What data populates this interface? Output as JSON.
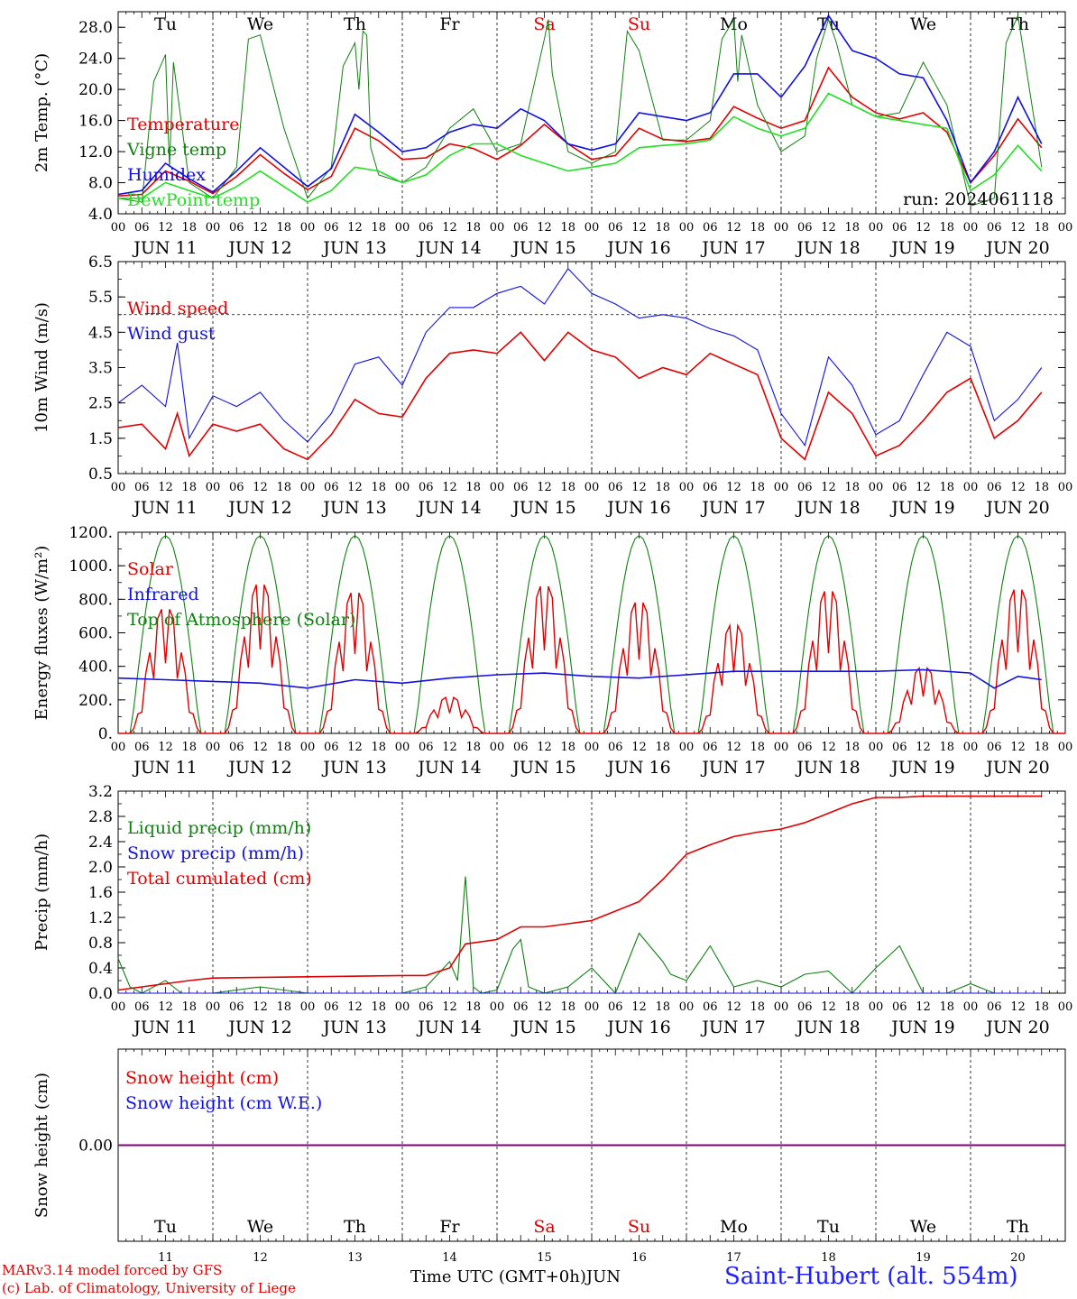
{
  "days": [
    "JUN 11",
    "JUN 12",
    "JUN 13",
    "JUN 14",
    "JUN 15",
    "JUN 16",
    "JUN 17",
    "JUN 18",
    "JUN 19",
    "JUN 20"
  ],
  "weekdays": [
    "Tu",
    "We",
    "Th",
    "Fr",
    "Sa",
    "Su",
    "Mo",
    "Tu",
    "We",
    "Th"
  ],
  "weekday_colors": [
    "#000000",
    "#000000",
    "#000000",
    "#000000",
    "#e00000",
    "#e00000",
    "#000000",
    "#000000",
    "#000000",
    "#000000"
  ],
  "day_numbers": [
    "11",
    "12",
    "13",
    "14",
    "15",
    "16",
    "17",
    "18",
    "19",
    "20"
  ],
  "hour_labels": [
    "00",
    "06",
    "12",
    "18"
  ],
  "footer": {
    "credit_line1": "MARv3.14 model forced by GFS",
    "credit_line2": "(c) Lab. of Climatology, University of Liege",
    "xaxis_title": "Time UTC (GMT+0h)",
    "xaxis_unit": "JUN",
    "station": "Saint-Hubert (alt. 554m)"
  },
  "colors": {
    "red": "#e00000",
    "green": "#108010",
    "blue": "#1010e0",
    "lightgreen": "#20e020",
    "purple": "#800080"
  },
  "chart_data": [
    {
      "type": "line",
      "ylabel": "2m Temp. (°C)",
      "ylim": [
        4,
        30
      ],
      "yticks": [
        "4.0",
        "8.0",
        "12.0",
        "16.0",
        "20.0",
        "24.0",
        "28.0"
      ],
      "annotation": "run: 2024061118",
      "x_unit": "hours since JUN 11 00 UTC",
      "series": [
        {
          "name": "Temperature",
          "color": "red",
          "x": [
            0,
            6,
            12,
            18,
            24,
            30,
            36,
            42,
            48,
            54,
            60,
            66,
            72,
            78,
            84,
            90,
            96,
            102,
            108,
            114,
            120,
            126,
            132,
            138,
            144,
            150,
            156,
            162,
            168,
            174,
            180,
            186,
            192,
            198,
            204,
            210,
            216,
            222,
            228,
            234
          ],
          "values": [
            6.3,
            6.5,
            9.5,
            8.2,
            6.6,
            8.8,
            11.6,
            9.2,
            7.1,
            8.8,
            15.0,
            13.4,
            11.0,
            11.2,
            13.0,
            12.4,
            11.0,
            12.8,
            15.5,
            13.0,
            11.0,
            11.5,
            15.0,
            13.6,
            13.3,
            13.7,
            17.8,
            16.3,
            15.0,
            16.0,
            22.8,
            19.0,
            17.0,
            16.2,
            17.0,
            14.5,
            8.0,
            11.5,
            16.2,
            12.5
          ]
        },
        {
          "name": "Vigne temp",
          "color": "green",
          "x": [
            0,
            6,
            9,
            12,
            13,
            14,
            18,
            24,
            30,
            33,
            36,
            42,
            48,
            54,
            57,
            60,
            61,
            62,
            63,
            64,
            66,
            72,
            78,
            84,
            90,
            96,
            102,
            108,
            109,
            110,
            114,
            120,
            126,
            129,
            132,
            138,
            144,
            150,
            153,
            156,
            157,
            158,
            162,
            168,
            174,
            177,
            180,
            182,
            186,
            192,
            198,
            204,
            210,
            216,
            222,
            225,
            228,
            234
          ],
          "values": [
            6.0,
            5.5,
            21.0,
            24.5,
            10.0,
            23.5,
            8.0,
            6.0,
            10.0,
            26.5,
            27.0,
            15.0,
            6.0,
            10.0,
            23.0,
            26.0,
            20.0,
            27.5,
            27.0,
            12.5,
            9.0,
            8.0,
            10.0,
            15.0,
            17.5,
            12.0,
            13.0,
            26.5,
            29.0,
            22.0,
            12.0,
            10.5,
            12.0,
            27.5,
            25.0,
            13.5,
            13.5,
            16.0,
            26.5,
            29.0,
            21.0,
            27.0,
            18.0,
            12.0,
            14.0,
            24.0,
            29.0,
            26.0,
            18.0,
            16.5,
            17.0,
            23.5,
            18.0,
            5.0,
            6.0,
            26.0,
            29.5,
            10.0
          ]
        },
        {
          "name": "Humidex",
          "color": "blue",
          "x": [
            0,
            6,
            12,
            18,
            24,
            30,
            36,
            42,
            48,
            54,
            60,
            66,
            72,
            78,
            84,
            90,
            96,
            102,
            108,
            114,
            120,
            126,
            132,
            138,
            144,
            150,
            156,
            162,
            168,
            174,
            180,
            186,
            192,
            198,
            204,
            210,
            216,
            222,
            228,
            234
          ],
          "values": [
            6.5,
            7.0,
            10.5,
            8.5,
            6.8,
            9.5,
            12.5,
            10.0,
            7.5,
            9.8,
            16.8,
            14.5,
            12.0,
            12.5,
            14.5,
            15.5,
            15.0,
            17.5,
            16.0,
            13.0,
            12.2,
            13.0,
            17.0,
            16.5,
            16.0,
            17.0,
            22.0,
            22.0,
            19.0,
            23.0,
            29.5,
            25.0,
            24.0,
            22.0,
            21.5,
            16.0,
            8.0,
            12.0,
            19.0,
            13.0
          ]
        },
        {
          "name": "DewPoint temp",
          "color": "lightgreen",
          "x": [
            0,
            6,
            12,
            18,
            24,
            30,
            36,
            42,
            48,
            54,
            60,
            66,
            72,
            78,
            84,
            90,
            96,
            102,
            108,
            114,
            120,
            126,
            132,
            138,
            144,
            150,
            156,
            162,
            168,
            174,
            180,
            186,
            192,
            198,
            204,
            210,
            216,
            222,
            228,
            234
          ],
          "values": [
            6.0,
            6.0,
            8.0,
            7.0,
            6.0,
            7.5,
            9.5,
            7.5,
            5.5,
            7.0,
            10.0,
            9.5,
            8.0,
            9.0,
            11.5,
            13.0,
            13.0,
            11.5,
            10.5,
            9.5,
            10.0,
            10.5,
            12.5,
            12.8,
            13.0,
            13.5,
            16.5,
            15.0,
            14.0,
            15.0,
            19.5,
            18.0,
            16.5,
            16.0,
            15.5,
            15.0,
            7.0,
            9.0,
            12.8,
            9.5
          ]
        }
      ]
    },
    {
      "type": "line",
      "ylabel": "10m Wind (m/s)",
      "ylim": [
        0.5,
        6.5
      ],
      "yticks": [
        "0.5",
        "1.5",
        "2.5",
        "3.5",
        "4.5",
        "5.5",
        "6.5"
      ],
      "reference_line": 5.0,
      "series": [
        {
          "name": "Wind speed",
          "color": "red",
          "x": [
            0,
            6,
            12,
            15,
            18,
            24,
            30,
            36,
            42,
            48,
            54,
            60,
            66,
            72,
            78,
            84,
            90,
            96,
            102,
            108,
            114,
            120,
            126,
            132,
            138,
            144,
            150,
            156,
            162,
            168,
            174,
            180,
            186,
            192,
            198,
            204,
            210,
            216,
            222,
            228,
            234
          ],
          "values": [
            1.8,
            1.9,
            1.2,
            2.2,
            1.0,
            1.9,
            1.7,
            1.9,
            1.2,
            0.9,
            1.6,
            2.6,
            2.2,
            2.1,
            3.2,
            3.9,
            4.0,
            3.9,
            4.5,
            3.7,
            4.5,
            4.0,
            3.8,
            3.2,
            3.5,
            3.3,
            3.9,
            3.6,
            3.3,
            1.5,
            0.9,
            2.8,
            2.2,
            1.0,
            1.3,
            2.0,
            2.8,
            3.2,
            1.5,
            2.0,
            2.8
          ]
        },
        {
          "name": "Wind gust",
          "color": "blue",
          "x": [
            0,
            6,
            12,
            15,
            18,
            24,
            30,
            36,
            42,
            48,
            54,
            60,
            66,
            72,
            78,
            84,
            90,
            96,
            102,
            108,
            114,
            120,
            126,
            132,
            138,
            144,
            150,
            156,
            162,
            168,
            174,
            180,
            186,
            192,
            198,
            204,
            210,
            216,
            222,
            228,
            234
          ],
          "values": [
            2.5,
            3.0,
            2.4,
            4.2,
            1.5,
            2.7,
            2.4,
            2.8,
            2.0,
            1.4,
            2.2,
            3.6,
            3.8,
            3.0,
            4.5,
            5.2,
            5.2,
            5.6,
            5.8,
            5.3,
            6.3,
            5.6,
            5.3,
            4.9,
            5.0,
            4.9,
            4.6,
            4.4,
            4.0,
            2.2,
            1.3,
            3.8,
            3.0,
            1.6,
            2.0,
            3.3,
            4.5,
            4.1,
            2.0,
            2.6,
            3.5
          ]
        }
      ]
    },
    {
      "type": "line",
      "ylabel": "Energy fluxes (W/m²)",
      "ylim": [
        0,
        1200
      ],
      "yticks": [
        "0.",
        "200.",
        "400.",
        "600.",
        "800.",
        "1000.",
        "1200."
      ],
      "series": [
        {
          "name": "Solar",
          "color": "red",
          "peaks": [
            760,
            910,
            860,
            220,
            900,
            800,
            660,
            870,
            400,
            880
          ]
        },
        {
          "name": "Infrared",
          "color": "blue",
          "x": [
            0,
            12,
            24,
            36,
            48,
            60,
            72,
            84,
            96,
            108,
            120,
            132,
            144,
            156,
            168,
            180,
            192,
            204,
            216,
            222,
            228,
            234
          ],
          "values": [
            330,
            320,
            310,
            300,
            270,
            320,
            300,
            330,
            350,
            360,
            340,
            330,
            350,
            370,
            370,
            370,
            370,
            380,
            360,
            270,
            340,
            320
          ]
        },
        {
          "name": "Top of Atmosphere (Solar)",
          "color": "green",
          "peak": 1180
        }
      ]
    },
    {
      "type": "line",
      "ylabel": "Precip (mm/h)",
      "ylim": [
        0,
        3.2
      ],
      "yticks": [
        "0.0",
        "0.4",
        "0.8",
        "1.2",
        "1.6",
        "2.0",
        "2.4",
        "2.8",
        "3.2"
      ],
      "series": [
        {
          "name": "Liquid precip (mm/h)",
          "color": "green",
          "x": [
            0,
            3,
            6,
            12,
            16,
            24,
            36,
            48,
            72,
            78,
            84,
            86,
            88,
            90,
            92,
            96,
            100,
            102,
            104,
            108,
            114,
            120,
            126,
            132,
            138,
            140,
            144,
            150,
            156,
            162,
            168,
            174,
            180,
            186,
            192,
            198,
            204,
            210,
            216,
            222,
            228,
            234
          ],
          "values": [
            0.55,
            0.1,
            0.0,
            0.2,
            0.0,
            0.0,
            0.1,
            0.0,
            0.0,
            0.1,
            0.5,
            0.2,
            1.85,
            0.1,
            0.0,
            0.05,
            0.7,
            0.85,
            0.1,
            0.0,
            0.1,
            0.4,
            0.0,
            0.95,
            0.5,
            0.3,
            0.2,
            0.75,
            0.1,
            0.2,
            0.1,
            0.3,
            0.35,
            0.0,
            0.4,
            0.75,
            0.0,
            0.0,
            0.15,
            0.0,
            0.0,
            0.0
          ]
        },
        {
          "name": "Snow precip (mm/h)",
          "color": "blue",
          "x": [
            0,
            234
          ],
          "values": [
            0,
            0
          ]
        },
        {
          "name": "Total cumulated (cm)",
          "color": "red",
          "x": [
            0,
            18,
            24,
            48,
            72,
            78,
            84,
            88,
            96,
            102,
            108,
            114,
            120,
            126,
            132,
            138,
            144,
            150,
            156,
            162,
            168,
            174,
            180,
            186,
            192,
            198,
            204,
            210,
            216,
            222,
            228,
            234
          ],
          "values": [
            0.05,
            0.2,
            0.24,
            0.26,
            0.28,
            0.28,
            0.4,
            0.78,
            0.85,
            1.05,
            1.05,
            1.1,
            1.15,
            1.3,
            1.45,
            1.8,
            2.2,
            2.35,
            2.48,
            2.55,
            2.6,
            2.7,
            2.85,
            3.0,
            3.1,
            3.1,
            3.12,
            3.12,
            3.12,
            3.12,
            3.12,
            3.12
          ]
        }
      ]
    },
    {
      "type": "line",
      "ylabel": "Snow height (cm)",
      "ylim": [
        -1,
        1
      ],
      "yticks": [
        "0.00"
      ],
      "series": [
        {
          "name": "Snow height (cm)",
          "color": "red",
          "x": [
            0,
            234
          ],
          "values": [
            0,
            0
          ]
        },
        {
          "name": "Snow height (cm W.E.)",
          "color": "blue",
          "x": [
            0,
            234
          ],
          "values": [
            0,
            0
          ]
        }
      ]
    }
  ]
}
